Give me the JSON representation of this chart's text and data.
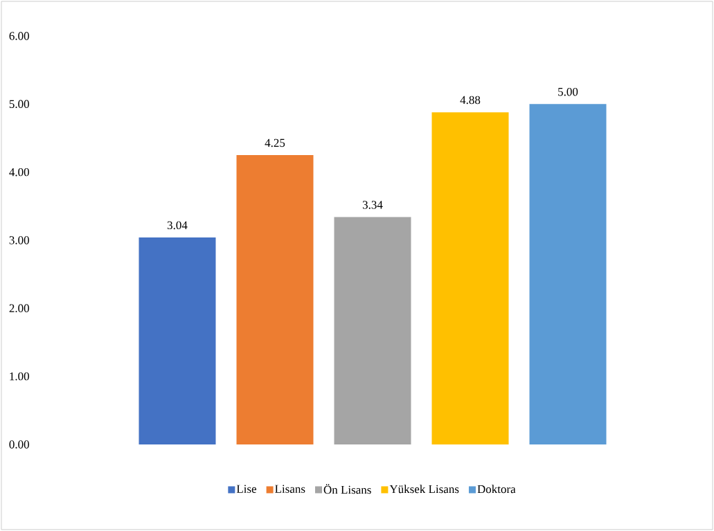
{
  "chart_data": {
    "type": "bar",
    "categories": [
      null
    ],
    "series": [
      {
        "name": "Lise",
        "color": "#4472c4",
        "values": [
          3.04
        ],
        "value_labels": [
          "3.04"
        ]
      },
      {
        "name": "Lisans",
        "color": "#ed7d31",
        "values": [
          4.25
        ],
        "value_labels": [
          "4.25"
        ]
      },
      {
        "name": "Ön Lisans",
        "color": "#a5a5a5",
        "values": [
          3.34
        ],
        "value_labels": [
          "3.34"
        ]
      },
      {
        "name": "Yüksek Lisans",
        "color": "#ffc000",
        "values": [
          4.88
        ],
        "value_labels": [
          "4.88"
        ]
      },
      {
        "name": "Doktora",
        "color": "#5b9bd5",
        "values": [
          5.0
        ],
        "value_labels": [
          "5.00"
        ]
      }
    ],
    "ylim": [
      0,
      6
    ],
    "yticks": [
      {
        "value": 0,
        "label": "0.00"
      },
      {
        "value": 1,
        "label": "1.00"
      },
      {
        "value": 2,
        "label": "2.00"
      },
      {
        "value": 3,
        "label": "3.00"
      },
      {
        "value": 4,
        "label": "4.00"
      },
      {
        "value": 5,
        "label": "5.00"
      },
      {
        "value": 6,
        "label": "6.00"
      }
    ],
    "legend": "bottom",
    "grid": false
  }
}
